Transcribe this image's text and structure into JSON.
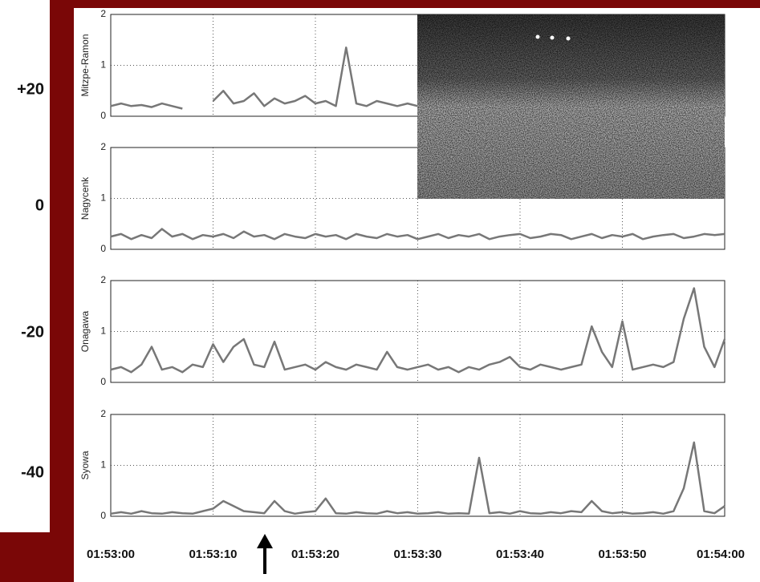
{
  "chart_data": {
    "type": "line",
    "left_labels": [
      "+20",
      "0",
      "-20",
      "-40"
    ],
    "x": [
      0,
      1,
      2,
      3,
      4,
      5,
      6,
      7,
      8,
      9,
      10,
      11,
      12,
      13,
      14,
      15,
      16,
      17,
      18,
      19,
      20,
      21,
      22,
      23,
      24,
      25,
      26,
      27,
      28,
      29,
      30,
      31,
      32,
      33,
      34,
      35,
      36,
      37,
      38,
      39,
      40,
      41,
      42,
      43,
      44,
      45,
      46,
      47,
      48,
      49,
      50,
      51,
      52,
      53,
      54,
      55,
      56,
      57,
      58,
      59,
      60
    ],
    "xlim": [
      0,
      60
    ],
    "xticks": [
      {
        "value": 0,
        "label": "01:53:00"
      },
      {
        "value": 10,
        "label": "01:53:10"
      },
      {
        "value": 20,
        "label": "01:53:20"
      },
      {
        "value": 30,
        "label": "01:53:30"
      },
      {
        "value": 40,
        "label": "01:53:40"
      },
      {
        "value": 50,
        "label": "01:53:50"
      },
      {
        "value": 60,
        "label": "01:54:00"
      }
    ],
    "ylim": [
      0,
      2
    ],
    "yticks": [
      0,
      1,
      2
    ],
    "grid": true,
    "series": [
      {
        "name": "Mitzpe-Ramon",
        "color": "#777777",
        "values": [
          0.2,
          0.25,
          0.2,
          0.22,
          0.18,
          0.25,
          0.2,
          0.15,
          null,
          null,
          0.3,
          0.5,
          0.25,
          0.3,
          0.45,
          0.2,
          0.35,
          0.25,
          0.3,
          0.4,
          0.25,
          0.3,
          0.2,
          1.35,
          0.25,
          0.2,
          0.3,
          0.25,
          0.2,
          0.25,
          0.2,
          null,
          null,
          null,
          null,
          null,
          null,
          null,
          null,
          null,
          null,
          null,
          null,
          null,
          null,
          null,
          null,
          null,
          null,
          null,
          null,
          null,
          null,
          null,
          null,
          null,
          null,
          null,
          null,
          null,
          null
        ]
      },
      {
        "name": "Nagycenk",
        "color": "#777777",
        "values": [
          0.25,
          0.3,
          0.2,
          0.28,
          0.22,
          0.4,
          0.25,
          0.3,
          0.2,
          0.28,
          0.25,
          0.3,
          0.22,
          0.35,
          0.25,
          0.28,
          0.2,
          0.3,
          0.25,
          0.22,
          0.3,
          0.25,
          0.28,
          0.2,
          0.3,
          0.25,
          0.22,
          0.3,
          0.25,
          0.28,
          0.2,
          0.25,
          0.3,
          0.22,
          0.28,
          0.25,
          0.3,
          0.2,
          0.25,
          0.28,
          0.3,
          0.22,
          0.25,
          0.3,
          0.28,
          0.2,
          0.25,
          0.3,
          0.22,
          0.28,
          0.25,
          0.3,
          0.2,
          0.25,
          0.28,
          0.3,
          0.22,
          0.25,
          0.3,
          0.28,
          0.3
        ]
      },
      {
        "name": "Onagawa",
        "color": "#777777",
        "values": [
          0.25,
          0.3,
          0.2,
          0.35,
          0.7,
          0.25,
          0.3,
          0.2,
          0.35,
          0.3,
          0.75,
          0.4,
          0.7,
          0.85,
          0.35,
          0.3,
          0.8,
          0.25,
          0.3,
          0.35,
          0.25,
          0.4,
          0.3,
          0.25,
          0.35,
          0.3,
          0.25,
          0.6,
          0.3,
          0.25,
          0.3,
          0.35,
          0.25,
          0.3,
          0.2,
          0.3,
          0.25,
          0.35,
          0.4,
          0.5,
          0.3,
          0.25,
          0.35,
          0.3,
          0.25,
          0.3,
          0.35,
          1.1,
          0.6,
          0.3,
          1.2,
          0.25,
          0.3,
          0.35,
          0.3,
          0.4,
          1.25,
          1.85,
          0.7,
          0.3,
          0.85
        ]
      },
      {
        "name": "Syowa",
        "color": "#777777",
        "values": [
          0.05,
          0.08,
          0.05,
          0.1,
          0.06,
          0.05,
          0.08,
          0.06,
          0.05,
          0.1,
          0.15,
          0.3,
          0.2,
          0.1,
          0.08,
          0.06,
          0.3,
          0.1,
          0.05,
          0.08,
          0.1,
          0.35,
          0.06,
          0.05,
          0.08,
          0.06,
          0.05,
          0.1,
          0.06,
          0.08,
          0.05,
          0.06,
          0.08,
          0.05,
          0.06,
          0.05,
          1.15,
          0.06,
          0.08,
          0.05,
          0.1,
          0.06,
          0.05,
          0.08,
          0.06,
          0.1,
          0.08,
          0.3,
          0.1,
          0.06,
          0.08,
          0.05,
          0.06,
          0.08,
          0.05,
          0.1,
          0.55,
          1.45,
          0.1,
          0.06,
          0.2
        ]
      }
    ]
  }
}
